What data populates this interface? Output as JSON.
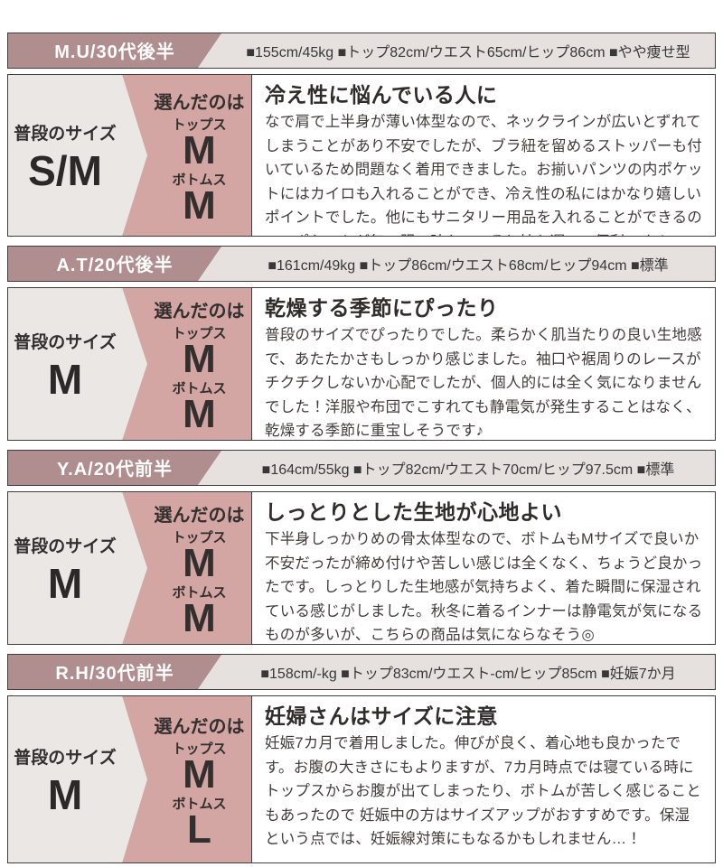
{
  "colors": {
    "accent_mauve": "#b08e8f",
    "header_light": "#e6e1df",
    "panel_gray": "#eae7e5",
    "panel_pink": "#d3a5a3",
    "border_dark": "#413d3c"
  },
  "labels": {
    "usual_size": "普段のサイズ",
    "chosen": "選んだのは",
    "tops": "トップス",
    "bottoms": "ボトムス"
  },
  "reviews": [
    {
      "reviewer": "M.U/30代後半",
      "stats": "■155cm/45kg ■トップ82cm/ウエスト65cm/ヒップ86cm ■やや痩せ型",
      "usual_size": "S/M",
      "tops_size": "M",
      "bottoms_size": "M",
      "title": "冷え性に悩んでいる人に",
      "body": "なで肩で上半身が薄い体型なので、ネックラインが広いとずれてしまうことがあり不安でしたが、ブラ紐を留めるストッパーも付いているため問題なく着用できました。お揃いパンツの内ポケットにはカイロも入れることができ、冷え性の私にはかなり嬉しいポイントでした。他にもサニタリー用品を入れることができるので、ポケットが無い服の時もこっそり持ち運べて便利です！"
    },
    {
      "reviewer": "A.T/20代後半",
      "stats": "■161cm/49kg ■トップ86cm/ウエスト68cm/ヒップ94cm ■標準",
      "usual_size": "M",
      "tops_size": "M",
      "bottoms_size": "M",
      "title": "乾燥する季節にぴったり",
      "body": "普段のサイズでぴったりでした。柔らかく肌当たりの良い生地感で、あたたかさもしっかり感じました。袖口や裾周りのレースがチクチクしないか心配でしたが、個人的には全く気になりませんでした！洋服や布団でこすれても静電気が発生することはなく、乾燥する季節に重宝しそうです♪"
    },
    {
      "reviewer": "Y.A/20代前半",
      "stats": "■164cm/55kg ■トップ82cm/ウエスト70cm/ヒップ97.5cm ■標準",
      "usual_size": "M",
      "tops_size": "M",
      "bottoms_size": "M",
      "title": "しっとりとした生地が心地よい",
      "body": "下半身しっかりめの骨太体型なので、ボトムもMサイズで良いか不安だったが締め付けや苦しい感じは全くなく、ちょうど良かったです。しっとりした生地感が気持ちよく、着た瞬間に保湿されている感じがしました。秋冬に着るインナーは静電気が気になるものが多いが、こちらの商品は気にならなそう◎"
    },
    {
      "reviewer": "R.H/30代前半",
      "stats": "■158cm/-kg ■トップ83cm/ウエスト-cm/ヒップ85cm ■妊娠7か月",
      "usual_size": "M",
      "tops_size": "M",
      "bottoms_size": "L",
      "title": "妊婦さんはサイズに注意",
      "body": "妊娠7カ月で着用しました。伸びが良く、着心地も良かったです。お腹の大きさにもよりますが、7カ月時点では寝ている時にトップスからお腹が出てしまったり、ボトムが苦しく感じることもあったので 妊娠中の方はサイズアップがおすすめです。保湿という点では、妊娠線対策にもなるかもしれません…！"
    }
  ]
}
